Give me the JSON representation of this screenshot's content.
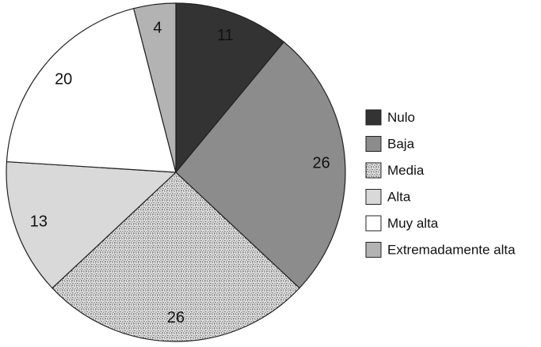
{
  "chart_data": {
    "type": "pie",
    "categories": [
      "Nulo",
      "Baja",
      "Media",
      "Alta",
      "Muy alta",
      "Extremadamente alta"
    ],
    "values": [
      11,
      26,
      26,
      13,
      20,
      4
    ],
    "data_labels": [
      "11",
      "26",
      "26",
      "13",
      "20",
      "4"
    ],
    "slice_order": "clockwise from 12 o'clock",
    "legend_placement": "right",
    "colors": {
      "Nulo": "#333333",
      "Baja": "#8c8c8c",
      "Media": "stipple",
      "Alta": "#d9d9d9",
      "Muy alta": "#ffffff",
      "Extremadamente alta": "#b3b3b3"
    },
    "title": "",
    "xlabel": "",
    "ylabel": ""
  }
}
